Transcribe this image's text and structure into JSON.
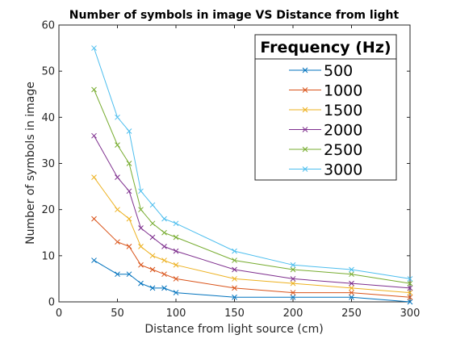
{
  "chart_data": {
    "type": "line",
    "title": "Number of symbols in image VS Distance from light",
    "xlabel": "Distance from light source (cm)",
    "ylabel": "Number of symbols in image",
    "xlim": [
      0,
      300
    ],
    "ylim": [
      0,
      60
    ],
    "xticks": [
      0,
      50,
      100,
      150,
      200,
      250,
      300
    ],
    "yticks": [
      0,
      10,
      20,
      30,
      40,
      50,
      60
    ],
    "grid": false,
    "marker": "x",
    "legend": {
      "title": "Frequency (Hz)",
      "placement": "top-right"
    },
    "x": [
      30,
      50,
      60,
      70,
      80,
      90,
      100,
      150,
      200,
      250,
      300
    ],
    "series": [
      {
        "name": "500",
        "color": "#0072BD",
        "values": [
          9,
          6,
          6,
          4,
          3,
          3,
          2,
          1,
          1,
          1,
          0
        ]
      },
      {
        "name": "1000",
        "color": "#D95319",
        "values": [
          18,
          13,
          12,
          8,
          7,
          6,
          5,
          3,
          2,
          2,
          1
        ]
      },
      {
        "name": "1500",
        "color": "#EDB120",
        "values": [
          27,
          20,
          18,
          12,
          10,
          9,
          8,
          5,
          4,
          3,
          2
        ]
      },
      {
        "name": "2000",
        "color": "#7E2F8E",
        "values": [
          36,
          27,
          24,
          16,
          14,
          12,
          11,
          7,
          5,
          4,
          3
        ]
      },
      {
        "name": "2500",
        "color": "#77AC30",
        "values": [
          46,
          34,
          30,
          20,
          17,
          15,
          14,
          9,
          7,
          6,
          4
        ]
      },
      {
        "name": "3000",
        "color": "#4DBEEE",
        "values": [
          55,
          40,
          37,
          24,
          21,
          18,
          17,
          11,
          8,
          7,
          5
        ]
      }
    ]
  }
}
